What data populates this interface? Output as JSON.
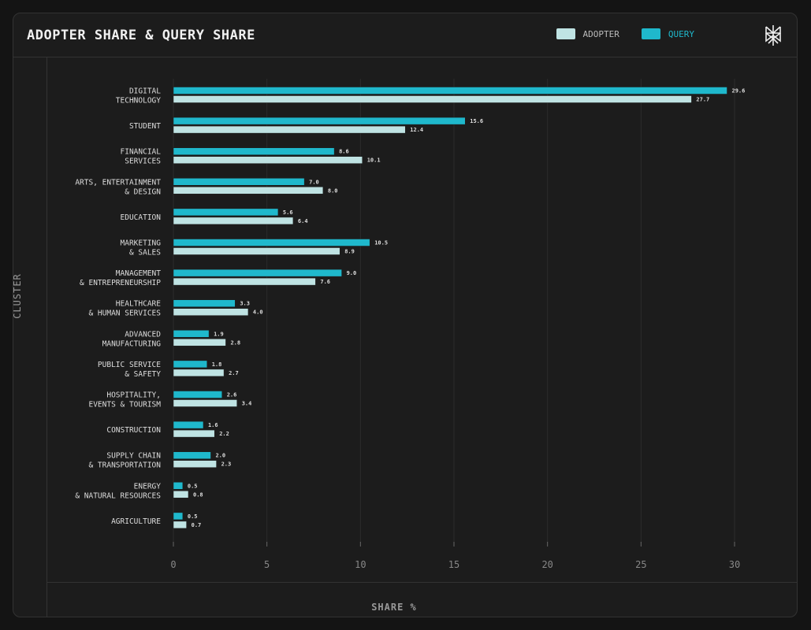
{
  "chart_data": {
    "type": "bar",
    "orientation": "horizontal",
    "title": "ADOPTER SHARE & QUERY SHARE",
    "xlabel": "SHARE %",
    "ylabel": "CLUSTER",
    "xlim": [
      0,
      30
    ],
    "xticks": [
      "0",
      "5",
      "10",
      "15",
      "20",
      "25",
      "30"
    ],
    "grid": true,
    "legend_position": "top-right",
    "categories": [
      [
        "DIGITAL",
        "TECHNOLOGY"
      ],
      [
        "STUDENT"
      ],
      [
        "FINANCIAL",
        "SERVICES"
      ],
      [
        "ARTS, ENTERTAINMENT",
        "& DESIGN"
      ],
      [
        "EDUCATION"
      ],
      [
        "MARKETING",
        "& SALES"
      ],
      [
        "MANAGEMENT",
        "& ENTREPRENEURSHIP"
      ],
      [
        "HEALTHCARE",
        "& HUMAN SERVICES"
      ],
      [
        "ADVANCED",
        "MANUFACTURING"
      ],
      [
        "PUBLIC SERVICE",
        "& SAFETY"
      ],
      [
        "HOSPITALITY,",
        "EVENTS & TOURISM"
      ],
      [
        "CONSTRUCTION"
      ],
      [
        "SUPPLY CHAIN",
        "& TRANSPORTATION"
      ],
      [
        "ENERGY",
        "& NATURAL RESOURCES"
      ],
      [
        "AGRICULTURE"
      ]
    ],
    "series": [
      {
        "name": "QUERY",
        "color": "#1fb8cc",
        "values": [
          29.6,
          15.6,
          8.6,
          7.0,
          5.6,
          10.5,
          9.0,
          3.3,
          1.9,
          1.8,
          2.6,
          1.6,
          2.0,
          0.5,
          0.5
        ]
      },
      {
        "name": "ADOPTER",
        "color": "#bfe3e3",
        "values": [
          27.7,
          12.4,
          10.1,
          8.0,
          6.4,
          8.9,
          7.6,
          4.0,
          2.8,
          2.7,
          3.4,
          2.2,
          2.3,
          0.8,
          0.7
        ]
      }
    ]
  },
  "legend": {
    "adopter": "ADOPTER",
    "query": "QUERY"
  },
  "logo_icon": "perplexity-logo"
}
